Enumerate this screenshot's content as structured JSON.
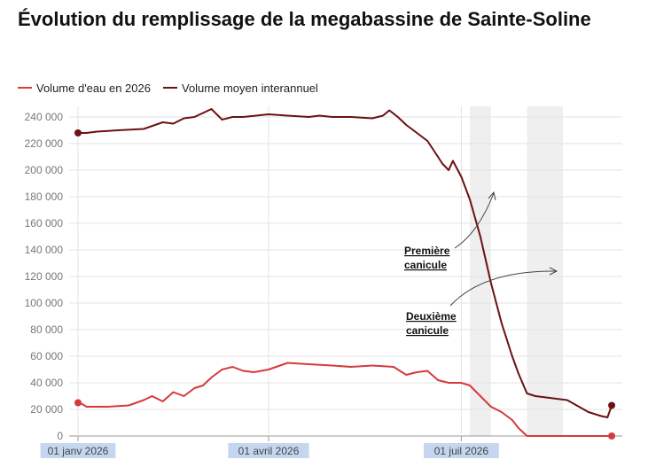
{
  "title": "Évolution du remplissage de la megabassine de Sainte-Soline",
  "colors": {
    "volume_2026": "#d63a3a",
    "volume_moyen": "#6b1111",
    "heatwave_band": "#efefef",
    "grid": "#e3e3e3"
  },
  "chart_data": {
    "type": "line",
    "title": "Évolution du remplissage de la megabassine de Sainte-Soline",
    "xlabel": "",
    "ylabel": "",
    "ylim": [
      0,
      240000
    ],
    "xlim": [
      "2026-01-01",
      "2026-09-15"
    ],
    "y_ticks": [
      0,
      20000,
      40000,
      60000,
      80000,
      100000,
      120000,
      140000,
      160000,
      180000,
      200000,
      220000,
      240000
    ],
    "y_tick_labels": [
      "0",
      "20 000",
      "40 000",
      "60 000",
      "80 000",
      "100 000",
      "120 000",
      "140 000",
      "160 000",
      "180 000",
      "200 000",
      "220 000",
      "240 000"
    ],
    "x_tick_dates": [
      "2026-01-01",
      "2026-04-01",
      "2026-07-01"
    ],
    "x_tick_labels": [
      "01 janv 2026",
      "01 avril 2026",
      "01 juil 2026"
    ],
    "grid": true,
    "legend_position": "top-left",
    "series": [
      {
        "name": "Volume d'eau en 2026",
        "color": "#d63a3a",
        "x": [
          "2026-01-01",
          "2026-01-03",
          "2026-01-05",
          "2026-01-15",
          "2026-01-25",
          "2026-02-01",
          "2026-02-05",
          "2026-02-10",
          "2026-02-15",
          "2026-02-20",
          "2026-02-25",
          "2026-03-01",
          "2026-03-05",
          "2026-03-10",
          "2026-03-15",
          "2026-03-20",
          "2026-03-25",
          "2026-04-01",
          "2026-04-10",
          "2026-04-20",
          "2026-05-01",
          "2026-05-10",
          "2026-05-20",
          "2026-05-30",
          "2026-06-05",
          "2026-06-10",
          "2026-06-15",
          "2026-06-20",
          "2026-06-25",
          "2026-07-01",
          "2026-07-05",
          "2026-07-10",
          "2026-07-15",
          "2026-07-20",
          "2026-07-25",
          "2026-07-28",
          "2026-08-01",
          "2026-08-10",
          "2026-08-20",
          "2026-08-30",
          "2026-09-05",
          "2026-09-10"
        ],
        "values": [
          25000,
          24000,
          22000,
          22000,
          23000,
          27000,
          30000,
          26000,
          33000,
          30000,
          36000,
          38000,
          44000,
          50000,
          52000,
          49000,
          48000,
          50000,
          55000,
          54000,
          53000,
          52000,
          53000,
          52000,
          46000,
          48000,
          49000,
          42000,
          40000,
          40000,
          38000,
          30000,
          22000,
          18000,
          12000,
          6000,
          0,
          0,
          0,
          0,
          0,
          0
        ]
      },
      {
        "name": "Volume moyen interannuel",
        "color": "#6b1111",
        "x": [
          "2026-01-01",
          "2026-01-05",
          "2026-01-10",
          "2026-01-20",
          "2026-02-01",
          "2026-02-10",
          "2026-02-15",
          "2026-02-20",
          "2026-02-25",
          "2026-03-01",
          "2026-03-05",
          "2026-03-10",
          "2026-03-15",
          "2026-03-20",
          "2026-04-01",
          "2026-04-10",
          "2026-04-20",
          "2026-04-25",
          "2026-05-01",
          "2026-05-10",
          "2026-05-20",
          "2026-05-25",
          "2026-05-28",
          "2026-06-01",
          "2026-06-05",
          "2026-06-10",
          "2026-06-15",
          "2026-06-20",
          "2026-06-22",
          "2026-06-25",
          "2026-06-27",
          "2026-07-01",
          "2026-07-05",
          "2026-07-10",
          "2026-07-15",
          "2026-07-20",
          "2026-07-25",
          "2026-07-28",
          "2026-08-01",
          "2026-08-05",
          "2026-08-10",
          "2026-08-20",
          "2026-08-30",
          "2026-09-05",
          "2026-09-08",
          "2026-09-10"
        ],
        "values": [
          228000,
          228000,
          229000,
          230000,
          231000,
          236000,
          235000,
          239000,
          240000,
          243000,
          246000,
          238000,
          240000,
          240000,
          242000,
          241000,
          240000,
          241000,
          240000,
          240000,
          239000,
          241000,
          245000,
          240000,
          234000,
          228000,
          222000,
          210000,
          205000,
          200000,
          207000,
          195000,
          178000,
          150000,
          115000,
          85000,
          60000,
          47000,
          32000,
          30000,
          29000,
          27000,
          18000,
          15000,
          14000,
          23000
        ]
      }
    ],
    "highlighted_periods": [
      {
        "start": "2026-07-05",
        "end": "2026-07-15"
      },
      {
        "start": "2026-08-01",
        "end": "2026-08-18"
      }
    ],
    "annotations": [
      {
        "text_line1": "Première",
        "text_line2": "canicule"
      },
      {
        "text_line1": "Deuxième",
        "text_line2": "canicule"
      }
    ]
  }
}
